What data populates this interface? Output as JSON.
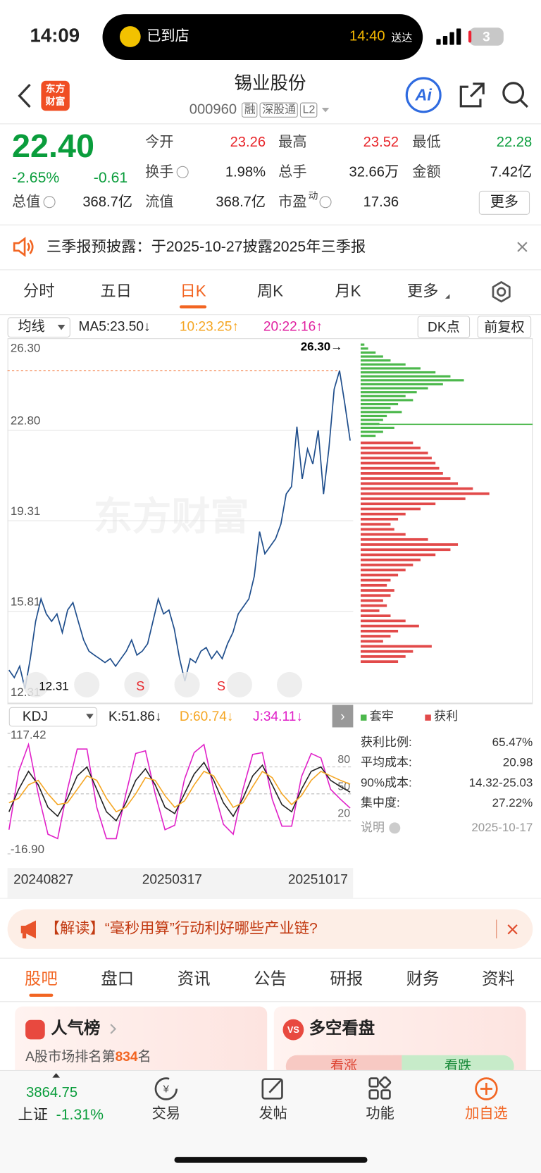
{
  "status_bar": {
    "time": "14:09",
    "island_label": "已到店",
    "island_time": "14:40",
    "island_suffix": "送达",
    "battery": "3"
  },
  "header": {
    "logo": [
      "东方",
      "财富"
    ],
    "title": "锡业股份",
    "code": "000960",
    "tags": [
      "融",
      "深股通",
      "L2"
    ],
    "ai": "Ai"
  },
  "quote": {
    "price": "22.40",
    "change_pct": "-2.65%",
    "change": "-0.61",
    "fields": [
      {
        "label": "今开",
        "value": "23.26",
        "color": "#e8262b"
      },
      {
        "label": "最高",
        "value": "23.52",
        "color": "#e8262b"
      },
      {
        "label": "最低",
        "value": "22.28",
        "color": "#0a9d3c"
      },
      {
        "label": "换手",
        "value": "1.98%"
      },
      {
        "label": "总手",
        "value": "32.66万"
      },
      {
        "label": "金额",
        "value": "7.42亿"
      },
      {
        "label": "总值",
        "value": "368.7亿"
      },
      {
        "label": "流值",
        "value": "368.7亿"
      },
      {
        "label": "市盈",
        "sup": "动",
        "value": "17.36"
      }
    ],
    "more": "更多"
  },
  "notice": {
    "text": "三季报预披露：于2025-10-27披露2025年三季报"
  },
  "period_tabs": {
    "items": [
      "分时",
      "五日",
      "日K",
      "周K",
      "月K",
      "更多"
    ],
    "active": 2
  },
  "ma_bar": {
    "selector": "均线",
    "ma5": "MA5:23.50↓",
    "ma10": "10:23.25↑",
    "ma20": "20:22.16↑",
    "dk": "DK点",
    "adjust": "前复权"
  },
  "price_chart": {
    "type": "line",
    "color": "#1f4e8c",
    "ylim": [
      12.31,
      26.3
    ],
    "yticks": [
      {
        "value": 26.3,
        "label": "26.30"
      },
      {
        "value": 22.8,
        "label": "22.80"
      },
      {
        "value": 19.31,
        "label": "19.31"
      },
      {
        "value": 15.81,
        "label": "15.81"
      },
      {
        "value": 12.31,
        "label": "12.31"
      }
    ],
    "values": [
      13.54,
      13.25,
      13.69,
      12.82,
      13.98,
      15.42,
      16.29,
      15.71,
      15.42,
      15.71,
      14.99,
      15.86,
      16.15,
      15.42,
      14.7,
      14.27,
      14.12,
      13.98,
      13.83,
      13.98,
      13.69,
      13.98,
      14.27,
      14.7,
      14.12,
      14.27,
      14.56,
      15.42,
      16.29,
      15.71,
      15.86,
      15.13,
      13.98,
      13.11,
      13.98,
      13.83,
      14.27,
      14.41,
      13.98,
      14.27,
      13.98,
      14.56,
      14.99,
      15.71,
      16.0,
      16.29,
      17.16,
      18.89,
      18.03,
      18.32,
      18.61,
      19.18,
      20.34,
      20.63,
      22.94,
      20.92,
      22.08,
      21.5,
      22.8,
      20.34,
      22.08,
      24.39,
      25.11,
      23.81,
      22.4
    ],
    "high_label": "26.30→",
    "low_label": "12.31",
    "watermark": "东方财富",
    "signals": [
      "S",
      "S"
    ],
    "xlabels": [
      "20240827",
      "20250317",
      "20251017"
    ]
  },
  "chip_chart": {
    "type": "bar",
    "trapped": {
      "name": "套牢",
      "color": "#4cb84c",
      "values": [
        5,
        10,
        20,
        30,
        40,
        60,
        80,
        100,
        120,
        138,
        110,
        90,
        75,
        60,
        70,
        50,
        40,
        55,
        35,
        30,
        25,
        45,
        30,
        20
      ]
    },
    "profit": {
      "name": "获利",
      "color": "#e24a4a",
      "values": [
        70,
        80,
        90,
        95,
        100,
        105,
        110,
        120,
        130,
        150,
        172,
        140,
        100,
        80,
        60,
        50,
        40,
        45,
        60,
        90,
        130,
        120,
        100,
        80,
        70,
        60,
        50,
        40,
        35,
        45,
        40,
        30,
        35,
        25,
        40,
        60,
        78,
        50,
        40,
        30,
        95,
        70,
        60,
        50
      ]
    }
  },
  "chip_stats": [
    {
      "label": "获利比例:",
      "value": "65.47%"
    },
    {
      "label": "平均成本:",
      "value": "20.98"
    },
    {
      "label": "90%成本:",
      "value": "14.32-25.03"
    },
    {
      "label": "集中度:",
      "value": "27.22%"
    },
    {
      "label": "说明",
      "value": "2025-10-17"
    }
  ],
  "kdj_chart": {
    "type": "line",
    "selector": "KDJ",
    "ylim": [
      -16.9,
      117.42
    ],
    "yticks": [
      117.42,
      {
        "value": -16.9,
        "label": "-16.90"
      }
    ],
    "ref_lines": [
      80,
      50,
      20
    ],
    "series": [
      {
        "name": "K:51.86↓",
        "color": "#222222",
        "values": [
          30,
          55,
          75,
          60,
          35,
          25,
          45,
          70,
          80,
          55,
          30,
          20,
          40,
          65,
          78,
          60,
          35,
          28,
          50,
          72,
          85,
          65,
          40,
          25,
          45,
          70,
          82,
          60,
          38,
          30,
          55,
          75,
          80,
          65,
          58,
          51.86
        ]
      },
      {
        "name": "D:60.74↓",
        "color": "#f5a623",
        "values": [
          40,
          45,
          60,
          65,
          50,
          38,
          40,
          55,
          70,
          65,
          45,
          30,
          35,
          50,
          68,
          65,
          48,
          35,
          42,
          60,
          75,
          70,
          52,
          35,
          40,
          58,
          75,
          68,
          50,
          38,
          48,
          65,
          75,
          70,
          65,
          60.74
        ]
      },
      {
        "name": "J:34.11↓",
        "color": "#e020c8",
        "values": [
          10,
          75,
          105,
          50,
          5,
          0,
          55,
          100,
          100,
          35,
          0,
          0,
          50,
          95,
          98,
          50,
          10,
          15,
          66,
          96,
          105,
          55,
          16,
          5,
          55,
          94,
          96,
          44,
          14,
          14,
          69,
          95,
          90,
          55,
          44,
          34.11
        ]
      }
    ]
  },
  "promo": {
    "text": "【解读】“毫秒用算”行动利好哪些产业链?"
  },
  "content_tabs": {
    "items": [
      "股吧",
      "盘口",
      "资讯",
      "公告",
      "研报",
      "财务",
      "资料"
    ],
    "active": 0
  },
  "cards": {
    "popularity": {
      "title": "人气榜",
      "rank_prefix": "A股市场排名第",
      "rank": "834",
      "rank_suffix": "名"
    },
    "sentiment": {
      "title": "多空看盘",
      "bull": "看涨",
      "bear": "看跌"
    }
  },
  "bottom_nav": {
    "index_value": "3864.75",
    "index_name": "上证",
    "index_change": "-1.31%",
    "items": [
      "交易",
      "发帖",
      "功能",
      "加自选"
    ]
  }
}
